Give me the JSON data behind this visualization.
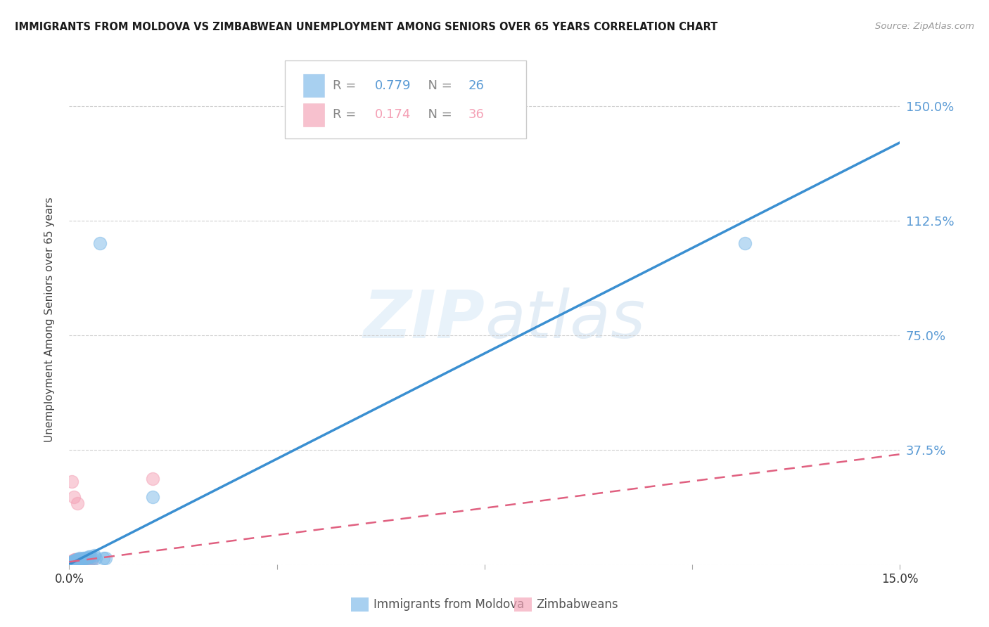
{
  "title": "IMMIGRANTS FROM MOLDOVA VS ZIMBABWEAN UNEMPLOYMENT AMONG SENIORS OVER 65 YEARS CORRELATION CHART",
  "source": "Source: ZipAtlas.com",
  "ylabel_ticks": [
    0.0,
    0.375,
    0.75,
    1.125,
    1.5
  ],
  "ylabel_labels": [
    "",
    "37.5%",
    "75.0%",
    "112.5%",
    "150.0%"
  ],
  "xlabel_ticks": [
    0.0,
    3.75,
    7.5,
    11.25,
    15.0
  ],
  "xlabel_labels": [
    "0.0%",
    "",
    "",
    "",
    "15.0%"
  ],
  "ylabel_label": "Unemployment Among Seniors over 65 years",
  "moldova_scatter_x": [
    1.5,
    0.3,
    0.15,
    0.25,
    0.08,
    0.05,
    0.1,
    0.12,
    0.18,
    0.22,
    0.32,
    0.42,
    0.06,
    0.09,
    0.16,
    0.28,
    0.38,
    0.48,
    0.07,
    0.35,
    0.55,
    0.62,
    0.45,
    0.2,
    12.2,
    0.65
  ],
  "moldova_scatter_y": [
    0.22,
    0.02,
    0.015,
    0.02,
    0.01,
    0.008,
    0.01,
    0.015,
    0.02,
    0.018,
    0.02,
    0.02,
    0.007,
    0.009,
    0.015,
    0.02,
    0.025,
    0.02,
    0.009,
    0.025,
    1.05,
    0.02,
    0.03,
    0.015,
    1.05,
    0.02
  ],
  "zimbabwe_scatter_x": [
    0.05,
    0.08,
    0.1,
    0.14,
    0.12,
    0.06,
    0.04,
    0.09,
    0.07,
    0.18,
    0.22,
    0.05,
    0.03,
    0.16,
    0.25,
    0.3,
    0.35,
    0.2,
    0.13,
    0.28,
    1.5,
    0.4,
    0.1,
    0.06,
    0.05,
    0.08,
    0.19,
    0.23,
    0.09,
    0.11,
    0.15,
    0.26,
    0.32,
    0.15,
    0.07,
    0.11
  ],
  "zimbabwe_scatter_y": [
    0.27,
    0.22,
    0.015,
    0.01,
    0.008,
    0.005,
    0.012,
    0.015,
    0.01,
    0.018,
    0.005,
    0.005,
    0.005,
    0.015,
    0.008,
    0.01,
    0.008,
    0.012,
    0.007,
    0.01,
    0.28,
    0.01,
    0.005,
    0.005,
    0.005,
    0.006,
    0.008,
    0.009,
    0.005,
    0.006,
    0.007,
    0.008,
    0.01,
    0.2,
    0.005,
    0.006
  ],
  "moldova_line_x": [
    0.0,
    15.0
  ],
  "moldova_line_y": [
    0.0,
    1.38
  ],
  "zimbabwe_line_x": [
    0.0,
    15.0
  ],
  "zimbabwe_line_y": [
    0.008,
    0.36
  ],
  "marker_size": 170,
  "blue_color": "#7ab8e8",
  "pink_color": "#f4a0b5",
  "blue_line_color": "#3a8fd1",
  "pink_line_color": "#e06080",
  "watermark_zip": "ZIP",
  "watermark_atlas": "atlas",
  "background_color": "#ffffff",
  "grid_color": "#d0d0d0"
}
